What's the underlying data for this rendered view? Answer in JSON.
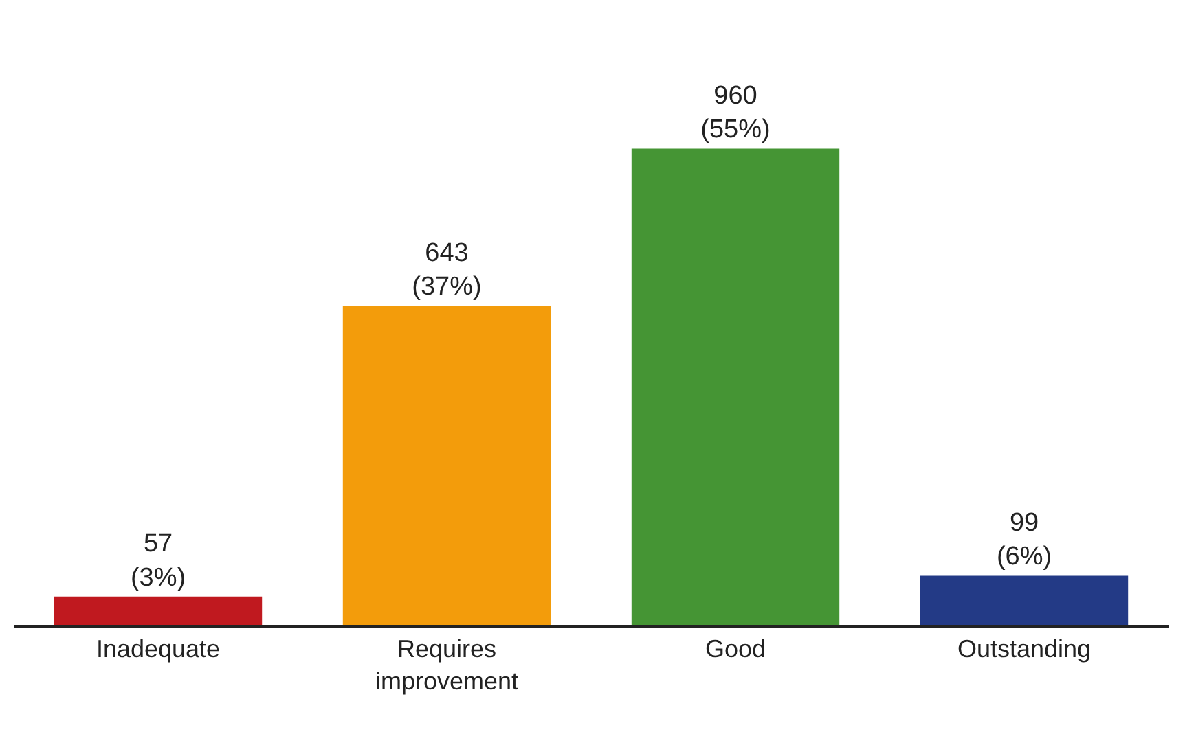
{
  "chart_data": {
    "type": "bar",
    "categories": [
      "Inadequate",
      "Requires improvement",
      "Good",
      "Outstanding"
    ],
    "values": [
      57,
      643,
      960,
      99
    ],
    "colors": [
      "#c0191f",
      "#f39c0b",
      "#459534",
      "#233a86"
    ],
    "value_labels": [
      "57\n(3%)",
      "643\n(37%)",
      "960\n(55%)",
      "99\n(6%)"
    ]
  }
}
